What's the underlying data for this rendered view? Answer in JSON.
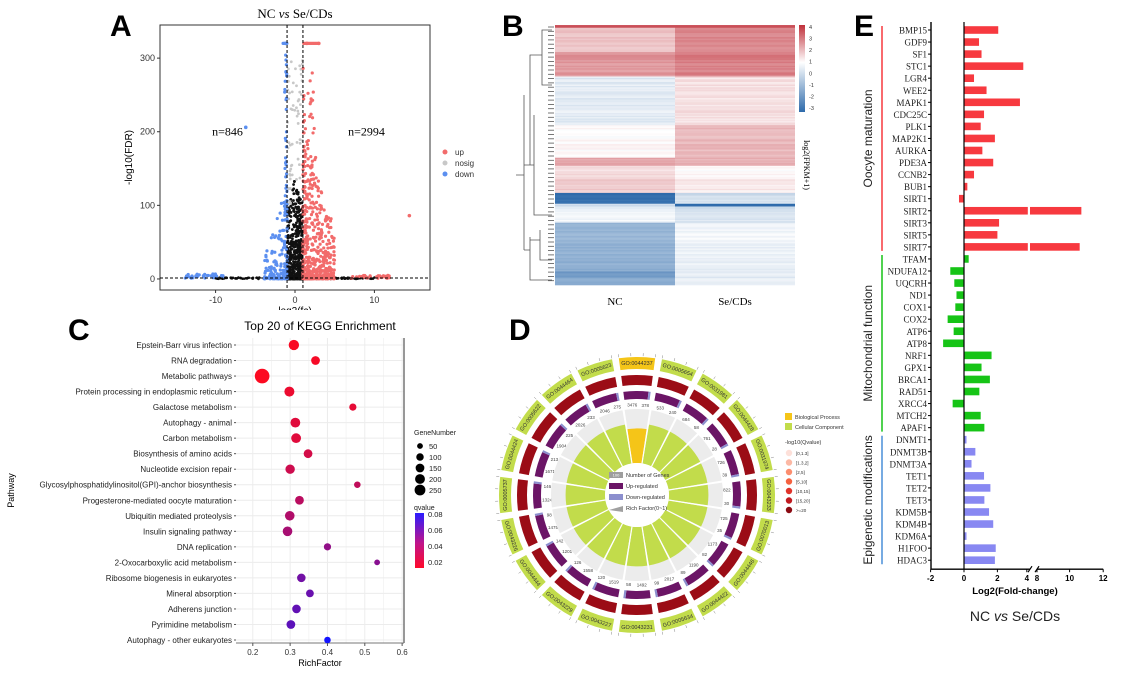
{
  "panels": {
    "A": "A",
    "B": "B",
    "C": "C",
    "D": "D",
    "E": "E"
  },
  "chart_data": [
    {
      "id": "A",
      "type": "scatter",
      "title": "NC vs Se/CDs",
      "title_parts": [
        "NC ",
        "vs",
        " Se/CDs"
      ],
      "xlabel": "log2(fc)",
      "ylabel": "-log10(FDR)",
      "xlim": [
        -17,
        17
      ],
      "ylim": [
        -15,
        345
      ],
      "xticks": [
        -10,
        0,
        10
      ],
      "yticks": [
        0,
        100,
        200,
        300
      ],
      "thresholds": {
        "x": [
          -1,
          1
        ],
        "y": 1.3
      },
      "annotations": [
        {
          "text": "n=846",
          "x": -8.5,
          "y": 200
        },
        {
          "text": "n=2994",
          "x": 9,
          "y": 200
        }
      ],
      "legend": [
        {
          "label": "up",
          "color": "#f26b6b"
        },
        {
          "label": "nosig",
          "color": "#c8c8c8"
        },
        {
          "label": "down",
          "color": "#5b8ff0"
        }
      ],
      "legend_position": "right",
      "colors": {
        "up": "#f26b6b",
        "nosig": "#000000",
        "down": "#5b8ff0"
      },
      "counts": {
        "down": 846,
        "up": 2994
      },
      "notable_points": [
        {
          "group": "up",
          "x": 14.4,
          "y": 86
        },
        {
          "group": "down",
          "x": -6.2,
          "y": 206
        },
        {
          "group": "down",
          "x": -1.2,
          "y": 320
        },
        {
          "group": "up",
          "x": 1.5,
          "y": 320
        },
        {
          "group": "up",
          "x": 3.0,
          "y": 320
        }
      ]
    },
    {
      "id": "B",
      "type": "heatmap",
      "columns": [
        "NC",
        "Se/CDs"
      ],
      "colorbar_label": "log2(FPKM+1)",
      "colorbar_ticks": [
        4,
        3,
        2,
        1,
        0,
        -1,
        -2,
        -3
      ],
      "colorbar_range": [
        -3,
        4
      ],
      "colors": {
        "high": "#c0303a",
        "mid": "#ffffff",
        "low": "#2e6aab"
      },
      "blocks": [
        {
          "rows": 2,
          "values": [
            3.6,
            3.6
          ]
        },
        {
          "rows": 18,
          "values": [
            1.6,
            2.6
          ]
        },
        {
          "rows": 6,
          "values": [
            2.4,
            2.8
          ]
        },
        {
          "rows": 12,
          "values": [
            2.2,
            2.6
          ]
        },
        {
          "rows": 36,
          "values": [
            0.0,
            1.0
          ]
        },
        {
          "rows": 24,
          "values": [
            0.6,
            1.7
          ]
        },
        {
          "rows": 6,
          "values": [
            2.0,
            1.8
          ]
        },
        {
          "rows": 10,
          "values": [
            1.1,
            0.6
          ]
        },
        {
          "rows": 10,
          "values": [
            1.4,
            0.9
          ]
        },
        {
          "rows": 8,
          "values": [
            -3.0,
            -0.3
          ]
        },
        {
          "rows": 2,
          "values": [
            -0.2,
            -3.0
          ]
        },
        {
          "rows": 12,
          "values": [
            0.2,
            -0.2
          ]
        },
        {
          "rows": 36,
          "values": [
            -1.3,
            0.2
          ]
        },
        {
          "rows": 4,
          "values": [
            -2.0,
            0.0
          ]
        },
        {
          "rows": 6,
          "values": [
            -1.5,
            0.1
          ]
        }
      ]
    },
    {
      "id": "C",
      "type": "scatter",
      "title": "Top 20 of KEGG Enrichment",
      "xlabel": "RichFactor",
      "ylabel": "Pathway",
      "xlim": [
        0.155,
        0.605
      ],
      "xticks": [
        0.2,
        0.3,
        0.4,
        0.5,
        0.6
      ],
      "grid": true,
      "size_legend_title": "GeneNumber",
      "size_legend": [
        50,
        100,
        150,
        200,
        250
      ],
      "color_legend_title": "qvalue",
      "color_legend_ticks": [
        0.08,
        0.06,
        0.04,
        0.02
      ],
      "color_range": [
        0.01,
        0.085
      ],
      "legend_position": "right",
      "points": [
        {
          "pathway": "Epstein-Barr virus infection",
          "richFactor": 0.31,
          "geneNumber": 110,
          "qvalue": 0.012
        },
        {
          "pathway": "RNA degradation",
          "richFactor": 0.368,
          "geneNumber": 70,
          "qvalue": 0.013
        },
        {
          "pathway": "Metabolic pathways",
          "richFactor": 0.225,
          "geneNumber": 260,
          "qvalue": 0.011
        },
        {
          "pathway": "Protein processing in endoplasmic reticulum",
          "richFactor": 0.298,
          "geneNumber": 100,
          "qvalue": 0.016
        },
        {
          "pathway": "Galactose metabolism",
          "richFactor": 0.468,
          "geneNumber": 40,
          "qvalue": 0.018
        },
        {
          "pathway": "Autophagy - animal",
          "richFactor": 0.314,
          "geneNumber": 95,
          "qvalue": 0.02
        },
        {
          "pathway": "Carbon metabolism",
          "richFactor": 0.316,
          "geneNumber": 95,
          "qvalue": 0.02
        },
        {
          "pathway": "Biosynthesis of amino acids",
          "richFactor": 0.348,
          "geneNumber": 70,
          "qvalue": 0.024
        },
        {
          "pathway": "Nucleotide excision repair",
          "richFactor": 0.3,
          "geneNumber": 85,
          "qvalue": 0.026
        },
        {
          "pathway": "Glycosylphosphatidylinositol(GPI)-anchor biosynthesis",
          "richFactor": 0.48,
          "geneNumber": 30,
          "qvalue": 0.03
        },
        {
          "pathway": "Progesterone-mediated oocyte maturation",
          "richFactor": 0.325,
          "geneNumber": 70,
          "qvalue": 0.032
        },
        {
          "pathway": "Ubiquitin mediated proteolysis",
          "richFactor": 0.299,
          "geneNumber": 90,
          "qvalue": 0.035
        },
        {
          "pathway": "Insulin signaling pathway",
          "richFactor": 0.293,
          "geneNumber": 90,
          "qvalue": 0.038
        },
        {
          "pathway": "DNA replication",
          "richFactor": 0.4,
          "geneNumber": 40,
          "qvalue": 0.045
        },
        {
          "pathway": "2-Oxocarboxylic acid metabolism",
          "richFactor": 0.533,
          "geneNumber": 20,
          "qvalue": 0.048
        },
        {
          "pathway": "Ribosome biogenesis in eukaryotes",
          "richFactor": 0.33,
          "geneNumber": 65,
          "qvalue": 0.055
        },
        {
          "pathway": "Mineral absorption",
          "richFactor": 0.353,
          "geneNumber": 50,
          "qvalue": 0.058
        },
        {
          "pathway": "Adherens junction",
          "richFactor": 0.317,
          "geneNumber": 65,
          "qvalue": 0.06
        },
        {
          "pathway": "Pyrimidine metabolism",
          "richFactor": 0.302,
          "geneNumber": 70,
          "qvalue": 0.062
        },
        {
          "pathway": "Autophagy - other eukaryotes",
          "richFactor": 0.4,
          "geneNumber": 30,
          "qvalue": 0.085
        }
      ]
    },
    {
      "id": "D",
      "type": "pie",
      "subtype": "GO enrichment circle plot",
      "center_legend": [
        {
          "label": "Number of Genes",
          "swatch": "#9e9e9e",
          "swatch_text": "100"
        },
        {
          "label": "Up-regulated",
          "swatch": "#6b1566"
        },
        {
          "label": "Down-regulated",
          "swatch": "#8c8fce"
        },
        {
          "label": "Rich Factor(0~1)",
          "swatch": "#a0a0a0"
        }
      ],
      "category_legend": [
        {
          "label": "Biological Process",
          "color": "#f5c518"
        },
        {
          "label": "Cellular Component",
          "color": "#c2dc4b"
        }
      ],
      "qvalue_legend_title": "-log10(Qvalue)",
      "qvalue_legend": [
        {
          "label": "[0,1.3]",
          "color": "#fde0d9"
        },
        {
          "label": "[1.3,2]",
          "color": "#fcb8a4"
        },
        {
          "label": "[2,5]",
          "color": "#fc8d6e"
        },
        {
          "label": "[5,10]",
          "color": "#f5613f"
        },
        {
          "label": "[10,15]",
          "color": "#e0332a"
        },
        {
          "label": "[15,20]",
          "color": "#c01a20"
        },
        {
          "label": ">=20",
          "color": "#8b0a12"
        }
      ],
      "terms": [
        {
          "go": "GO:0044237",
          "category": "Biological Process",
          "up": 3476,
          "down": 378,
          "rich": 0.62
        },
        {
          "go": "GO:0005654",
          "category": "Cellular Component",
          "up": 533,
          "down": 240,
          "rich": 0.55
        },
        {
          "go": "GO:0031981",
          "category": "Cellular Component",
          "up": 684,
          "down": 58,
          "rich": 0.55
        },
        {
          "go": "GO:0044428",
          "category": "Cellular Component",
          "up": 761,
          "down": 28,
          "rich": 0.55
        },
        {
          "go": "GO:0031974",
          "category": "Cellular Component",
          "up": 726,
          "down": 39,
          "rich": 0.55
        },
        {
          "go": "GO:0043233",
          "category": "Cellular Component",
          "up": 822,
          "down": 30,
          "rich": 0.55
        },
        {
          "go": "GO:0070013",
          "category": "Cellular Component",
          "up": 725,
          "down": 35,
          "rich": 0.55
        },
        {
          "go": "GO:0044446",
          "category": "Cellular Component",
          "up": 1173,
          "down": 82,
          "rich": 0.55
        },
        {
          "go": "GO:0044422",
          "category": "Cellular Component",
          "up": 1190,
          "down": 89,
          "rich": 0.55
        },
        {
          "go": "GO:0005634",
          "category": "Cellular Component",
          "up": 2017,
          "down": 99,
          "rich": 0.55
        },
        {
          "go": "GO:0043231",
          "category": "Cellular Component",
          "up": 1492,
          "down": 58,
          "rich": 0.55
        },
        {
          "go": "GO:0043227",
          "category": "Cellular Component",
          "up": 1519,
          "down": 120,
          "rich": 0.55
        },
        {
          "go": "GO:0043229",
          "category": "Cellular Component",
          "up": 1558,
          "down": 126,
          "rich": 0.55
        },
        {
          "go": "GO:0044444",
          "category": "Cellular Component",
          "up": 1201,
          "down": 142,
          "rich": 0.55
        },
        {
          "go": "GO:0043226",
          "category": "Cellular Component",
          "up": 1475,
          "down": 98,
          "rich": 0.55
        },
        {
          "go": "GO:0005737",
          "category": "Cellular Component",
          "up": 1324,
          "down": 146,
          "rich": 0.55
        },
        {
          "go": "GO:0044424",
          "category": "Cellular Component",
          "up": 1671,
          "down": 213,
          "rich": 0.55
        },
        {
          "go": "GO:0005622",
          "category": "Cellular Component",
          "up": 1904,
          "down": 225,
          "rich": 0.55
        },
        {
          "go": "GO:0044464",
          "category": "Cellular Component",
          "up": 2026,
          "down": 233,
          "rich": 0.55
        },
        {
          "go": "GO:0005623",
          "category": "Cellular Component",
          "up": 2046,
          "down": 275,
          "rich": 0.55
        }
      ]
    },
    {
      "id": "E",
      "type": "bar",
      "orientation": "horizontal",
      "xlabel": "Log2(Fold-change)",
      "subtitle_parts": [
        "NC ",
        "vs",
        " Se/CDs"
      ],
      "xticks_left": [
        -2,
        0,
        2,
        4
      ],
      "xticks_right": [
        8,
        10,
        12
      ],
      "axis_break": [
        4,
        8
      ],
      "groups": [
        {
          "name": "Oocyte maturation",
          "color": "#f7393f",
          "genes": [
            "BMP15",
            "GDF9",
            "SF1",
            "STC1",
            "LGR4",
            "WEE2",
            "MAPK1",
            "CDC25C",
            "PLK1",
            "MAP2K1",
            "AURKA",
            "PDE3A",
            "CCNB2",
            "BUB1",
            "SIRT1",
            "SIRT2",
            "SIRT3",
            "SIRT5",
            "SIRT7"
          ],
          "values": [
            2.05,
            0.9,
            1.05,
            3.55,
            0.6,
            1.35,
            3.35,
            1.2,
            1.0,
            1.85,
            1.1,
            1.75,
            0.6,
            0.2,
            -0.3,
            10.7,
            2.1,
            2.0,
            10.6
          ]
        },
        {
          "name": "Mitochondrial function",
          "color": "#16c416",
          "genes": [
            "TFAM",
            "NDUFA12",
            "UQCRH",
            "ND1",
            "COX1",
            "COX2",
            "ATP6",
            "ATP8",
            "NRF1",
            "GPX1",
            "BRCA1",
            "RAD51",
            "XRCC4",
            "MTCH2",
            "APAF1"
          ],
          "values": [
            0.28,
            -0.82,
            -0.58,
            -0.45,
            -0.52,
            -0.98,
            -0.62,
            -1.25,
            1.65,
            1.05,
            1.55,
            0.92,
            -0.68,
            1.0,
            1.22
          ]
        },
        {
          "name": "Epigenetic modifications",
          "color": "#8888f2",
          "genes": [
            "DNMT1",
            "DNMT3B",
            "DNMT3A",
            "TET1",
            "TET2",
            "TET3",
            "KDM5B",
            "KDM4B",
            "KDM6A",
            "H1FOO",
            "HDAC3"
          ],
          "values": [
            0.15,
            0.68,
            0.45,
            1.2,
            1.58,
            1.22,
            1.5,
            1.75,
            0.15,
            1.9,
            1.85
          ]
        }
      ]
    }
  ]
}
